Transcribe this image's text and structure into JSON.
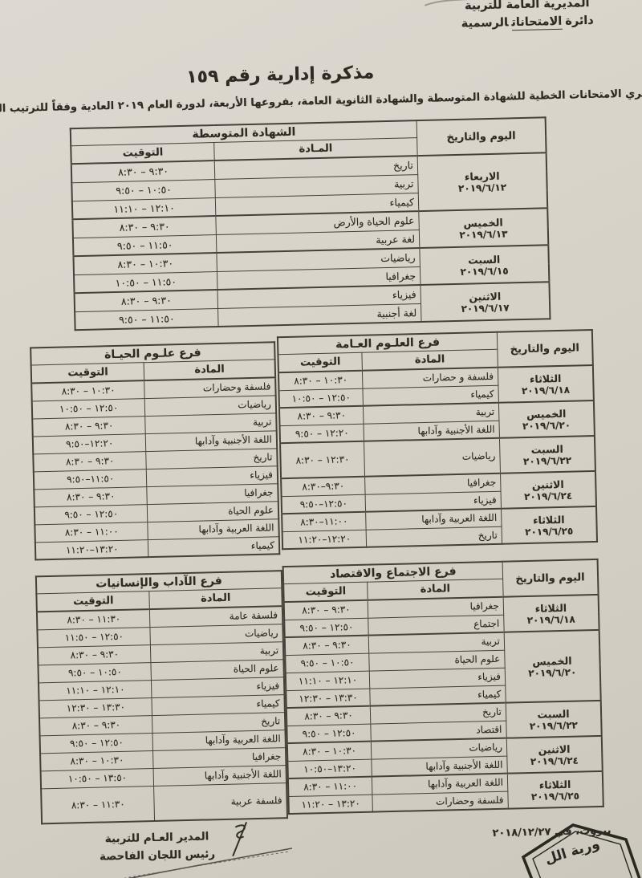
{
  "colors": {
    "paper": "#d8d4ca",
    "ink": "#2f2b24",
    "table_line": "#45413a"
  },
  "header": {
    "org_line1": "المديرية العامة للتربية",
    "org_line2_prefix": "دائرة",
    "org_line2_word": "الامتحانات",
    "org_line2_suffix": "الرسمية"
  },
  "memo": {
    "title": "مذكرة إدارية رقم ١٥٩",
    "intro": "تجري الامتحانات الخطية للشهادة المتوسطة والشهادة الثانوية العامة، بفروعها الأربعة، لدورة العام ٢٠١٩ العادية وفقاً للترتيب التالي:"
  },
  "labels": {
    "day_date": "اليوم والتاريخ",
    "subject": "المادة",
    "time": "التوقيت"
  },
  "tables": {
    "intermediate": {
      "title": "الشهادة المتوسطة",
      "subject_label": "المـادة",
      "days": [
        {
          "day": "الاربعاء",
          "date": "٢٠١٩/٦/١٢",
          "rows": [
            {
              "subject": "تاريخ",
              "time": "٩:٣٠ – ٨:٣٠"
            },
            {
              "subject": "تربية",
              "time": "١٠:٥٠ – ٩:٥٠"
            },
            {
              "subject": "كيمياء",
              "time": "١٢:١٠ – ١١:١٠"
            }
          ]
        },
        {
          "day": "الخميس",
          "date": "٢٠١٩/٦/١٣",
          "rows": [
            {
              "subject": "علوم الحياة والأرض",
              "time": "٩:٣٠ – ٨:٣٠"
            },
            {
              "subject": "لغة عربية",
              "time": "١١:٥٠ – ٩:٥٠"
            }
          ]
        },
        {
          "day": "السبت",
          "date": "٢٠١٩/٦/١٥",
          "rows": [
            {
              "subject": "رياضيات",
              "time": "١٠:٣٠ – ٨:٣٠"
            },
            {
              "subject": "جغرافيا",
              "time": "١١:٥٠ – ١٠:٥٠"
            }
          ]
        },
        {
          "day": "الاثنين",
          "date": "٢٠١٩/٦/١٧",
          "rows": [
            {
              "subject": "فيزياء",
              "time": "٩:٣٠ – ٨:٣٠"
            },
            {
              "subject": "لغة أجنبية",
              "time": "١١:٥٠ – ٩:٥٠"
            }
          ]
        }
      ]
    },
    "life_sciences": {
      "title": "فرع علـوم الحيـاة",
      "rows": [
        {
          "subject": "فلسفة وحضارات",
          "time": "١٠:٣٠ – ٨:٣٠"
        },
        {
          "subject": "رياضيات",
          "time": "١٢:٥٠ – ١٠:٥٠"
        },
        {
          "subject": "تربية",
          "time": "٩:٣٠ – ٨:٣٠"
        },
        {
          "subject": "اللغة الأجنبية وآدابها",
          "time": "١٢:٢٠–٩:٥٠"
        },
        {
          "subject": "تاريخ",
          "time": "٩:٣٠ – ٨:٣٠"
        },
        {
          "subject": "فيزياء",
          "time": "١١:٥٠–٩:٥٠"
        },
        {
          "subject": "جغرافيا",
          "time": "٩:٣٠ – ٨:٣٠"
        },
        {
          "subject": "علوم الحياة",
          "time": "١٢:٥٠ – ٩:٥٠"
        },
        {
          "subject": "اللغة العربية وآدابها",
          "time": "١١:٠٠ – ٨:٣٠"
        },
        {
          "subject": "كيمياء",
          "time": "١٣:٢٠–١١:٢٠"
        }
      ]
    },
    "general_sciences": {
      "title": "فرع العلـوم العـامة",
      "days": [
        {
          "day": "الثلاثاء",
          "date": "٢٠١٩/٦/١٨",
          "rows": [
            {
              "subject": "فلسفة و حضارات",
              "time": "١٠:٣٠ – ٨:٣٠"
            },
            {
              "subject": "كيمياء",
              "time": "١٢:٥٠ – ١٠:٥٠"
            }
          ]
        },
        {
          "day": "الخميس",
          "date": "٢٠١٩/٦/٢٠",
          "rows": [
            {
              "subject": "تربية",
              "time": "٩:٣٠ – ٨:٣٠"
            },
            {
              "subject": "اللغة الأجنبية وآدابها",
              "time": "١٢:٢٠ – ٩:٥٠"
            }
          ]
        },
        {
          "day": "السبت",
          "date": "٢٠١٩/٦/٢٢",
          "rows": [
            {
              "subject": "رياضيات",
              "time": "١٢:٣٠ – ٨:٣٠",
              "tall": true
            }
          ]
        },
        {
          "day": "الاثنين",
          "date": "٢٠١٩/٦/٢٤",
          "rows": [
            {
              "subject": "جغرافيا",
              "time": "٩:٣٠–٨:٣٠"
            },
            {
              "subject": "فيزياء",
              "time": "١٢:٥٠–٩:٥٠"
            }
          ]
        },
        {
          "day": "الثلاثاء",
          "date": "٢٠١٩/٦/٢٥",
          "rows": [
            {
              "subject": "اللغة العربية وآدابها",
              "time": "١١:٠٠–٨:٣٠"
            },
            {
              "subject": "تاريخ",
              "time": "١٢:٢٠–١١:٢٠"
            }
          ]
        }
      ]
    },
    "literature_humanities": {
      "title": "فرع الآداب والإنسانيات",
      "rows": [
        {
          "subject": "فلسفة عامة",
          "time": "١١:٣٠ – ٨:٣٠"
        },
        {
          "subject": "رياضيات",
          "time": "١٢:٥٠ – ١١:٥٠"
        },
        {
          "subject": "تربية",
          "time": "٩:٣٠ – ٨:٣٠"
        },
        {
          "subject": "علوم الحياة",
          "time": "١٠:٥٠ – ٩:٥٠"
        },
        {
          "subject": "فيزياء",
          "time": "١٢:١٠ – ١١:١٠"
        },
        {
          "subject": "كيمياء",
          "time": "١٣:٣٠ – ١٢:٣٠"
        },
        {
          "subject": "تاريخ",
          "time": "٩:٣٠ – ٨:٣٠"
        },
        {
          "subject": "اللغة العربية وآدابها",
          "time": "١٢:٥٠ – ٩:٥٠"
        },
        {
          "subject": "جغرافيا",
          "time": "١٠:٣٠ – ٨:٣٠"
        },
        {
          "subject": "اللغة الأجنبية وآدابها",
          "time": "١٣:٥٠ – ١٠:٥٠"
        },
        {
          "subject": "فلسفة عربية",
          "time": "١١:٣٠ – ٨:٣٠",
          "tall": true
        }
      ]
    },
    "sociology_economics": {
      "title": "فرع الاجتماع والاقتصاد",
      "days": [
        {
          "day": "الثلاثاء",
          "date": "٢٠١٩/٦/١٨",
          "rows": [
            {
              "subject": "جغرافيا",
              "time": "٩:٣٠ – ٨:٣٠"
            },
            {
              "subject": "اجتماع",
              "time": "١٢:٥٠ – ٩:٥٠"
            }
          ]
        },
        {
          "day": "الخميس",
          "date": "٢٠١٩/٦/٢٠",
          "rows": [
            {
              "subject": "تربية",
              "time": "٩:٣٠ – ٨:٣٠"
            },
            {
              "subject": "علوم الحياة",
              "time": "١٠:٥٠ – ٩:٥٠"
            },
            {
              "subject": "فيزياء",
              "time": "١٢:١٠ – ١١:١٠"
            },
            {
              "subject": "كيمياء",
              "time": "١٣:٣٠ – ١٢:٣٠"
            }
          ]
        },
        {
          "day": "السبت",
          "date": "٢٠١٩/٦/٢٢",
          "rows": [
            {
              "subject": "تاريخ",
              "time": "٩:٣٠ – ٨:٣٠"
            },
            {
              "subject": "اقتصاد",
              "time": "١٢:٥٠ – ٩:٥٠"
            }
          ]
        },
        {
          "day": "الاثنين",
          "date": "٢٠١٩/٦/٢٤",
          "rows": [
            {
              "subject": "رياضيات",
              "time": "١٠:٣٠ – ٨:٣٠"
            },
            {
              "subject": "اللغة الأجنبية وآدابها",
              "time": "١٣:٢٠–١٠:٥٠"
            }
          ]
        },
        {
          "day": "الثلاثاء",
          "date": "٢٠١٩/٦/٢٥",
          "rows": [
            {
              "subject": "اللغة العربية وآدابها",
              "time": "١١:٠٠ – ٨:٣٠"
            },
            {
              "subject": "فلسفة وحضارات",
              "time": "١٣:٢٠ – ١١:٢٠"
            }
          ]
        }
      ]
    }
  },
  "footer": {
    "place": "بيروت، في",
    "date": "٢٠١٨/١٢/٢٧",
    "signature_line1": "المدير العـام للتربية",
    "signature_line2": "رئيس اللجان الفاحصة",
    "stamp_text": "ورية الل"
  }
}
